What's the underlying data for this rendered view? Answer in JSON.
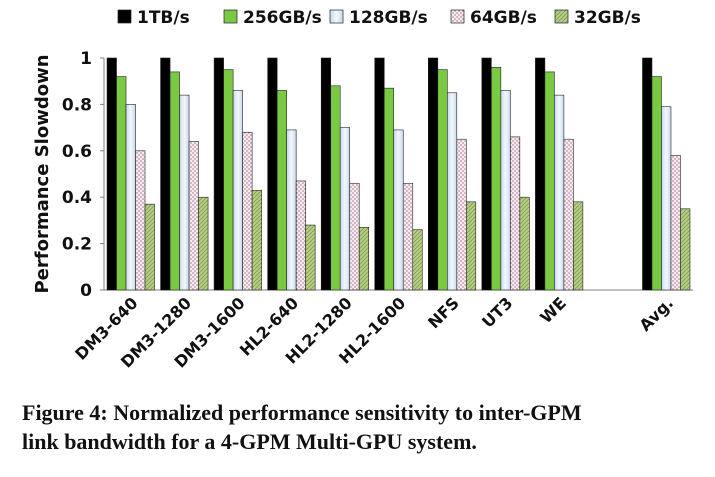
{
  "chart_data": {
    "type": "bar",
    "title": "",
    "xlabel": "",
    "ylabel": "Performance Slowdown",
    "ylim": [
      0,
      1
    ],
    "yticks": [
      "0",
      "0.2",
      "0.4",
      "0.6",
      "0.8",
      "1"
    ],
    "legend_position": "top",
    "grid": false,
    "categories": [
      "DM3-640",
      "DM3-1280",
      "DM3-1600",
      "HL2-640",
      "HL2-1280",
      "HL2-1600",
      "NFS",
      "UT3",
      "WE",
      "",
      "Avg."
    ],
    "series": [
      {
        "name": "1TB/s",
        "color": "#000000",
        "pattern": "solid",
        "values": [
          1,
          1,
          1,
          1,
          1,
          1,
          1,
          1,
          1,
          null,
          1
        ]
      },
      {
        "name": "256GB/s",
        "color": "#7ac943",
        "pattern": "solid",
        "values": [
          0.92,
          0.94,
          0.95,
          0.86,
          0.88,
          0.87,
          0.95,
          0.96,
          0.94,
          null,
          0.92
        ]
      },
      {
        "name": "128GB/s",
        "color": "#dde8f6",
        "pattern": "gradient",
        "values": [
          0.8,
          0.84,
          0.86,
          0.69,
          0.7,
          0.69,
          0.85,
          0.86,
          0.84,
          null,
          0.79
        ]
      },
      {
        "name": "64GB/s",
        "color": "#f7eaf0",
        "pattern": "dots",
        "values": [
          0.6,
          0.64,
          0.68,
          0.47,
          0.46,
          0.46,
          0.65,
          0.66,
          0.65,
          null,
          0.58
        ]
      },
      {
        "name": "32GB/s",
        "color": "#b6cf86",
        "pattern": "hatch",
        "values": [
          0.37,
          0.4,
          0.43,
          0.28,
          0.27,
          0.26,
          0.38,
          0.4,
          0.38,
          null,
          0.35
        ]
      }
    ]
  },
  "caption": {
    "line1": "Figure 4: Normalized performance sensitivity to inter-GPM",
    "line2": "link bandwidth for a 4-GPM Multi-GPU system."
  }
}
